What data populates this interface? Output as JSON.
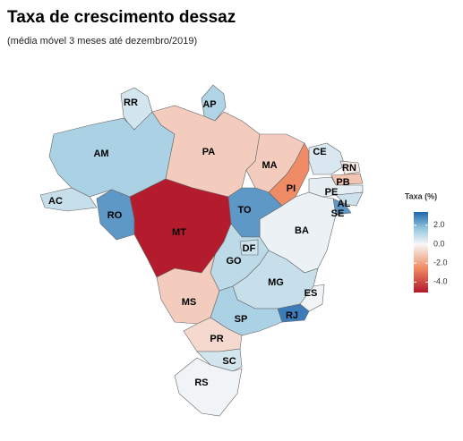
{
  "title": "Taxa de crescimento dessaz",
  "subtitle": "(média móvel 3 meses até dezembro/2019)",
  "legend": {
    "title": "Taxa (%)",
    "colorlim": [
      -5.1,
      3.4
    ],
    "ticks": [
      {
        "value": 2,
        "label": "2.0"
      },
      {
        "value": 0,
        "label": "0.0"
      },
      {
        "value": -2,
        "label": "-2.0"
      },
      {
        "value": -4,
        "label": "-4.0"
      }
    ]
  },
  "states": [
    {
      "name": "RR",
      "value": 0.6
    },
    {
      "name": "AP",
      "value": 1.2
    },
    {
      "name": "AM",
      "value": 1.3
    },
    {
      "name": "AC",
      "value": 0.8
    },
    {
      "name": "RO",
      "value": 2.5
    },
    {
      "name": "PA",
      "value": -1.0
    },
    {
      "name": "MA",
      "value": -1.0
    },
    {
      "name": "PI",
      "value": -2.5
    },
    {
      "name": "CE",
      "value": 0.5
    },
    {
      "name": "RN",
      "value": -0.3
    },
    {
      "name": "PB",
      "value": -1.2
    },
    {
      "name": "PE",
      "value": 0.3
    },
    {
      "name": "AL",
      "value": 0.7
    },
    {
      "name": "SE",
      "value": 2.5
    },
    {
      "name": "BA",
      "value": 0.2
    },
    {
      "name": "TO",
      "value": 2.5
    },
    {
      "name": "MT",
      "value": -5.0
    },
    {
      "name": "GO",
      "value": 1.0
    },
    {
      "name": "DF",
      "value": 0.7
    },
    {
      "name": "MG",
      "value": 0.8
    },
    {
      "name": "ES",
      "value": 0.1
    },
    {
      "name": "RJ",
      "value": 3.0
    },
    {
      "name": "SP",
      "value": 1.3
    },
    {
      "name": "MS",
      "value": -1.0
    },
    {
      "name": "PR",
      "value": -0.7
    },
    {
      "name": "SC",
      "value": 0.6
    },
    {
      "name": "RS",
      "value": 0.1
    }
  ]
}
